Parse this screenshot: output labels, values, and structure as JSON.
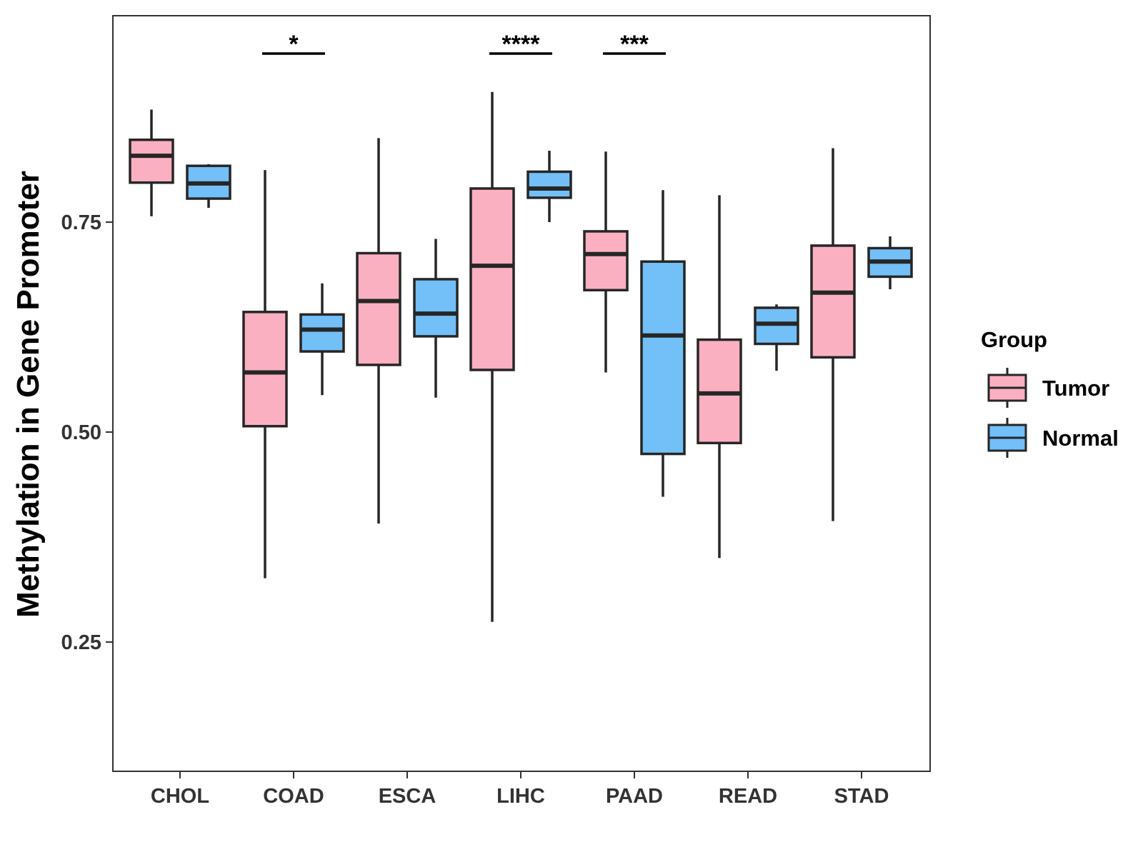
{
  "chart_data": {
    "type": "boxplot",
    "title": "",
    "xlabel": "",
    "ylabel": "Methylation in Gene Promoter",
    "ylim": [
      0.1,
      1.0
    ],
    "yticks": [
      0.25,
      0.5,
      0.75
    ],
    "ytick_labels": [
      "0.25",
      "0.50",
      "0.75"
    ],
    "categories": [
      "CHOL",
      "COAD",
      "ESCA",
      "LIHC",
      "PAAD",
      "READ",
      "STAD"
    ],
    "legend": {
      "title": "Group",
      "position": "right",
      "entries": [
        {
          "name": "Tumor",
          "color": "#FBB0C2"
        },
        {
          "name": "Normal",
          "color": "#73BFF7"
        }
      ]
    },
    "series": [
      {
        "name": "Tumor",
        "color": "#FBB0C2",
        "boxes": [
          {
            "min": 0.757,
            "q1": 0.797,
            "median": 0.829,
            "q3": 0.848,
            "max": 0.884
          },
          {
            "min": 0.326,
            "q1": 0.507,
            "median": 0.571,
            "q3": 0.643,
            "max": 0.812
          },
          {
            "min": 0.391,
            "q1": 0.58,
            "median": 0.656,
            "q3": 0.713,
            "max": 0.85
          },
          {
            "min": 0.274,
            "q1": 0.574,
            "median": 0.698,
            "q3": 0.79,
            "max": 0.905
          },
          {
            "min": 0.571,
            "q1": 0.669,
            "median": 0.712,
            "q3": 0.739,
            "max": 0.834
          },
          {
            "min": 0.35,
            "q1": 0.487,
            "median": 0.546,
            "q3": 0.61,
            "max": 0.782
          },
          {
            "min": 0.394,
            "q1": 0.589,
            "median": 0.666,
            "q3": 0.722,
            "max": 0.838
          }
        ]
      },
      {
        "name": "Normal",
        "color": "#73BFF7",
        "boxes": [
          {
            "min": 0.767,
            "q1": 0.778,
            "median": 0.796,
            "q3": 0.817,
            "max": 0.819
          },
          {
            "min": 0.544,
            "q1": 0.596,
            "median": 0.622,
            "q3": 0.64,
            "max": 0.677
          },
          {
            "min": 0.541,
            "q1": 0.614,
            "median": 0.641,
            "q3": 0.682,
            "max": 0.73
          },
          {
            "min": 0.75,
            "q1": 0.779,
            "median": 0.79,
            "q3": 0.81,
            "max": 0.835
          },
          {
            "min": 0.423,
            "q1": 0.474,
            "median": 0.615,
            "q3": 0.703,
            "max": 0.788
          },
          {
            "min": 0.573,
            "q1": 0.605,
            "median": 0.629,
            "q3": 0.648,
            "max": 0.652
          },
          {
            "min": 0.67,
            "q1": 0.685,
            "median": 0.703,
            "q3": 0.719,
            "max": 0.733
          }
        ]
      }
    ],
    "significance": [
      {
        "category": "COAD",
        "label": "*"
      },
      {
        "category": "LIHC",
        "label": "****"
      },
      {
        "category": "PAAD",
        "label": "***"
      }
    ]
  }
}
